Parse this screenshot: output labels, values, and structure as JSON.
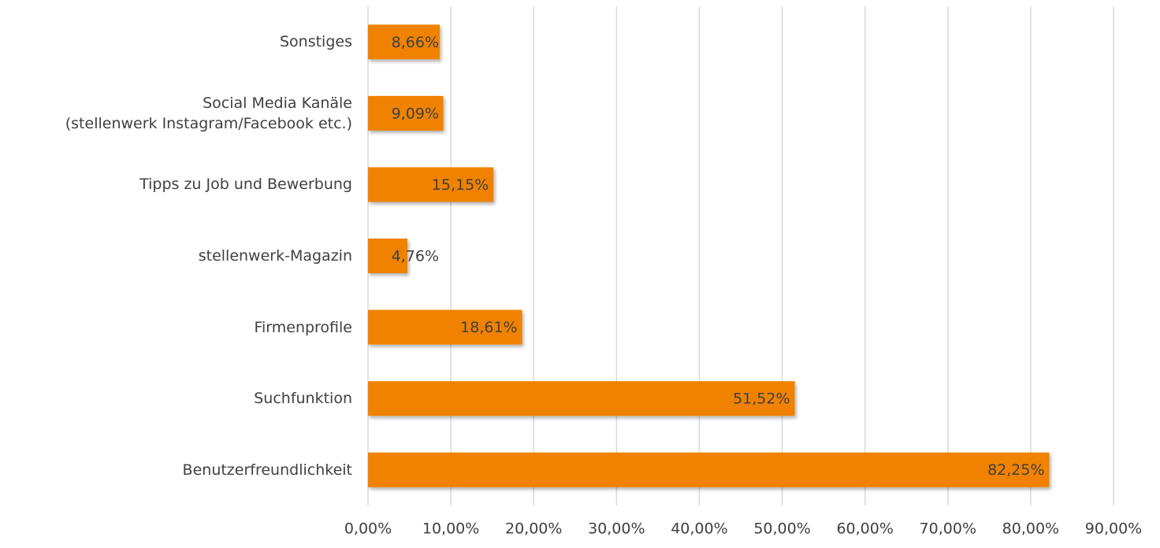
{
  "chart_data": {
    "type": "hbar",
    "categories": [
      "Sonstiges",
      "Social Media Kanäle\n(stellenwerk Instagram/Facebook etc.)",
      "Tipps zu Job und Bewerbung",
      "stellenwerk-Magazin",
      "Firmenprofile",
      "Suchfunktion",
      "Benutzerfreundlichkeit"
    ],
    "values": [
      8.66,
      9.09,
      15.15,
      4.76,
      18.61,
      51.52,
      82.25
    ],
    "value_labels": [
      "8,66%",
      "9,09%",
      "15,15%",
      "4,76%",
      "18,61%",
      "51,52%",
      "82,25%"
    ],
    "color": "#f08205",
    "xlim": [
      0,
      90
    ],
    "xticks": [
      {
        "value": 0,
        "label": "0,00%"
      },
      {
        "value": 10,
        "label": "10,00%"
      },
      {
        "value": 20,
        "label": "20,00%"
      },
      {
        "value": 30,
        "label": "30,00%"
      },
      {
        "value": 40,
        "label": "40,00%"
      },
      {
        "value": 50,
        "label": "50,00%"
      },
      {
        "value": 60,
        "label": "60,00%"
      },
      {
        "value": 70,
        "label": "70,00%"
      },
      {
        "value": 80,
        "label": "80,00%"
      },
      {
        "value": 90,
        "label": "90,00%"
      }
    ],
    "grid": true
  }
}
